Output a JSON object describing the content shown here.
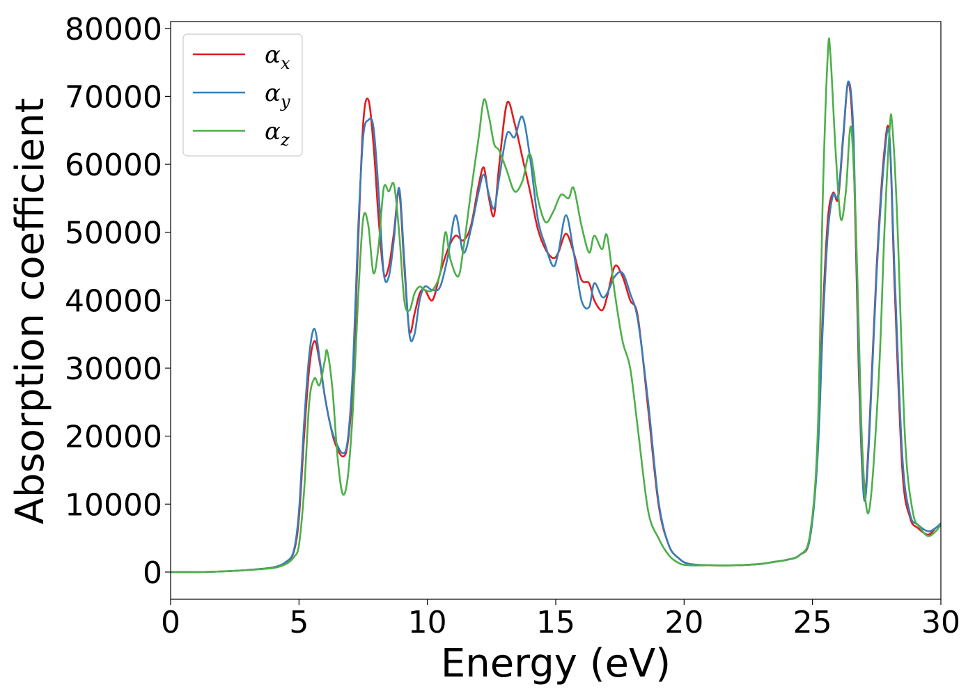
{
  "chart_data": {
    "type": "line",
    "title": "",
    "xlabel": "Energy (eV)",
    "ylabel": "Absorption coefficient",
    "xlim": [
      0,
      30
    ],
    "ylim": [
      -4000,
      81000
    ],
    "xticks": [
      0,
      5,
      10,
      15,
      20,
      25,
      30
    ],
    "yticks": [
      0,
      10000,
      20000,
      30000,
      40000,
      50000,
      60000,
      70000,
      80000
    ],
    "xtick_labels": [
      "0",
      "5",
      "10",
      "15",
      "20",
      "25",
      "30"
    ],
    "ytick_labels": [
      "0",
      "10000",
      "20000",
      "30000",
      "40000",
      "50000",
      "60000",
      "70000",
      "80000"
    ],
    "grid": false,
    "legend_position": "top-left",
    "series": [
      {
        "name": "α_x",
        "legend_symbol": "α",
        "legend_sub": "x",
        "color": "#e41a1c",
        "x": [
          0,
          1,
          2,
          3,
          4,
          4.5,
          4.8,
          5.0,
          5.2,
          5.4,
          5.6,
          5.8,
          6.0,
          6.2,
          6.4,
          6.7,
          6.9,
          7.1,
          7.3,
          7.5,
          7.7,
          7.9,
          8.1,
          8.3,
          8.5,
          8.7,
          8.9,
          9.1,
          9.3,
          9.5,
          9.7,
          9.9,
          10.2,
          10.5,
          10.8,
          11.1,
          11.4,
          11.7,
          12.0,
          12.2,
          12.4,
          12.6,
          12.8,
          13.1,
          13.4,
          13.7,
          14.0,
          14.3,
          14.6,
          14.9,
          15.1,
          15.4,
          15.7,
          16.0,
          16.3,
          16.5,
          16.8,
          17.0,
          17.3,
          17.6,
          17.9,
          18.2,
          18.6,
          19.0,
          19.4,
          19.8,
          20.2,
          21,
          22,
          23,
          23.5,
          24,
          24.5,
          24.9,
          25.2,
          25.4,
          25.6,
          25.8,
          26.0,
          26.2,
          26.4,
          26.6,
          26.8,
          27.0,
          27.2,
          27.5,
          27.8,
          28.0,
          28.2,
          28.5,
          28.8,
          29.1,
          29.5,
          29.8,
          30
        ],
        "y": [
          0,
          0,
          100,
          300,
          700,
          1500,
          3000,
          8000,
          20000,
          30000,
          34000,
          31000,
          26000,
          22000,
          19000,
          17000,
          19000,
          28000,
          48000,
          66000,
          69500,
          63000,
          52000,
          44000,
          45000,
          50000,
          56000,
          45000,
          35500,
          38000,
          41000,
          41500,
          40000,
          44000,
          47500,
          49500,
          48800,
          51000,
          57000,
          59500,
          55000,
          52500,
          60000,
          69000,
          66000,
          61000,
          56000,
          50500,
          47500,
          46200,
          47000,
          49800,
          47000,
          43000,
          42500,
          40000,
          38500,
          40500,
          45000,
          43500,
          40000,
          37500,
          24000,
          10000,
          4000,
          2000,
          1200,
          1000,
          1000,
          1200,
          1500,
          1800,
          2500,
          5000,
          18000,
          38000,
          52000,
          55800,
          55000,
          64000,
          72000,
          62000,
          30000,
          11500,
          20000,
          45000,
          62000,
          64000,
          42000,
          15000,
          8000,
          6500,
          5500,
          6500,
          7000
        ]
      },
      {
        "name": "α_y",
        "legend_symbol": "α",
        "legend_sub": "y",
        "color": "#377eb8",
        "x": [
          0,
          1,
          2,
          3,
          4,
          4.5,
          4.8,
          5.0,
          5.2,
          5.4,
          5.6,
          5.8,
          6.0,
          6.2,
          6.4,
          6.7,
          6.9,
          7.1,
          7.3,
          7.5,
          7.7,
          7.9,
          8.1,
          8.3,
          8.5,
          8.7,
          8.9,
          9.1,
          9.3,
          9.5,
          9.7,
          9.9,
          10.2,
          10.5,
          10.8,
          11.1,
          11.4,
          11.7,
          12.0,
          12.2,
          12.4,
          12.6,
          12.8,
          13.1,
          13.4,
          13.7,
          14.0,
          14.3,
          14.6,
          14.9,
          15.1,
          15.4,
          15.7,
          16.0,
          16.3,
          16.5,
          16.8,
          17.0,
          17.3,
          17.6,
          17.9,
          18.2,
          18.6,
          19.0,
          19.4,
          19.8,
          20.2,
          21,
          22,
          23,
          23.5,
          24,
          24.5,
          24.9,
          25.2,
          25.4,
          25.6,
          25.8,
          26.0,
          26.2,
          26.4,
          26.6,
          26.8,
          27.0,
          27.2,
          27.5,
          27.8,
          28.0,
          28.2,
          28.5,
          28.8,
          29.1,
          29.5,
          29.8,
          30
        ],
        "y": [
          0,
          0,
          100,
          300,
          700,
          1500,
          3200,
          9000,
          22000,
          32000,
          35800,
          31500,
          26000,
          22000,
          19500,
          17500,
          19500,
          30000,
          50000,
          64000,
          66500,
          65500,
          56000,
          44000,
          43500,
          49000,
          56500,
          46000,
          35000,
          35000,
          40000,
          42000,
          41500,
          42000,
          46500,
          52500,
          47000,
          50500,
          56000,
          58500,
          55500,
          53500,
          58000,
          64500,
          64000,
          67000,
          61000,
          52000,
          48000,
          45000,
          47000,
          52500,
          47000,
          40000,
          39000,
          42500,
          40500,
          41000,
          43500,
          44000,
          41000,
          37000,
          25000,
          10500,
          4000,
          2000,
          1200,
          1000,
          1000,
          1200,
          1500,
          1800,
          2500,
          5000,
          17000,
          36000,
          50000,
          55500,
          55500,
          64500,
          72200,
          64000,
          32000,
          11000,
          19000,
          44000,
          61000,
          64000,
          44000,
          17000,
          8500,
          7000,
          6000,
          6500,
          7200
        ]
      },
      {
        "name": "α_z",
        "legend_symbol": "α",
        "legend_sub": "z",
        "color": "#4daf4a",
        "x": [
          0,
          1,
          2,
          3,
          4,
          4.5,
          4.8,
          5.0,
          5.2,
          5.4,
          5.6,
          5.8,
          6.0,
          6.1,
          6.3,
          6.5,
          6.7,
          6.9,
          7.1,
          7.3,
          7.5,
          7.7,
          7.9,
          8.1,
          8.3,
          8.5,
          8.7,
          8.9,
          9.1,
          9.3,
          9.5,
          9.7,
          9.9,
          10.2,
          10.5,
          10.7,
          10.9,
          11.2,
          11.4,
          11.7,
          12.0,
          12.2,
          12.4,
          12.6,
          12.8,
          13.1,
          13.4,
          13.7,
          14.0,
          14.3,
          14.6,
          14.9,
          15.2,
          15.5,
          15.7,
          16.0,
          16.3,
          16.5,
          16.8,
          17.0,
          17.3,
          17.6,
          17.9,
          18.2,
          18.6,
          19.0,
          19.4,
          19.8,
          20.2,
          21,
          22,
          23,
          23.5,
          24,
          24.5,
          24.9,
          25.2,
          25.4,
          25.6,
          25.7,
          25.9,
          26.1,
          26.3,
          26.5,
          26.7,
          26.9,
          27.1,
          27.3,
          27.6,
          27.8,
          28.0,
          28.1,
          28.3,
          28.6,
          28.9,
          29.2,
          29.5,
          29.8,
          30
        ],
        "y": [
          0,
          0,
          100,
          300,
          600,
          1200,
          2200,
          4000,
          12000,
          25000,
          28500,
          27500,
          31000,
          32500,
          27000,
          17000,
          11500,
          14000,
          24000,
          40000,
          52000,
          51000,
          44000,
          48000,
          56500,
          56000,
          57000,
          50000,
          40000,
          38500,
          41000,
          42000,
          41500,
          41500,
          44000,
          50000,
          46000,
          43500,
          47500,
          56000,
          64000,
          69500,
          67000,
          63000,
          62000,
          59000,
          56000,
          57500,
          61500,
          55000,
          51500,
          53000,
          55500,
          55000,
          56500,
          51000,
          47000,
          49500,
          47500,
          49500,
          41000,
          34000,
          30000,
          21000,
          9000,
          5000,
          2500,
          1300,
          1000,
          1000,
          1000,
          1200,
          1500,
          1800,
          2500,
          5500,
          20000,
          55000,
          76500,
          76000,
          62000,
          52000,
          56000,
          65500,
          50000,
          22000,
          9500,
          12000,
          30000,
          50000,
          65000,
          66000,
          52000,
          20000,
          9000,
          6500,
          5300,
          6000,
          7000
        ]
      }
    ]
  }
}
